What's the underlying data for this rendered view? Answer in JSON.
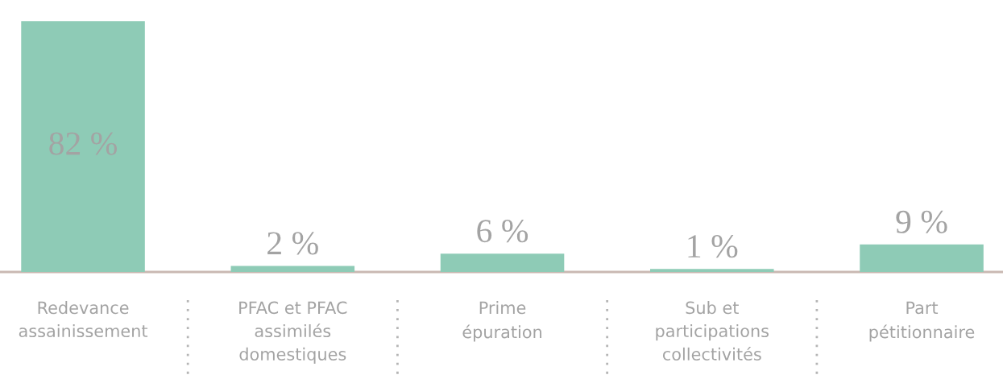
{
  "chart_data": {
    "type": "bar",
    "categories": [
      "Redevance\nassainissement",
      "PFAC et PFAC\nassimilés\ndomestiques",
      "Prime\népuration",
      "Sub et\nparticipations\ncollectivités",
      "Part\npétitionnaire"
    ],
    "values": [
      82,
      2,
      6,
      1,
      9
    ],
    "value_labels": [
      "82 %",
      "2 %",
      "6 %",
      "1 %",
      "9 %"
    ],
    "color": "#8ecbb6",
    "tick_labels": "x"
  }
}
